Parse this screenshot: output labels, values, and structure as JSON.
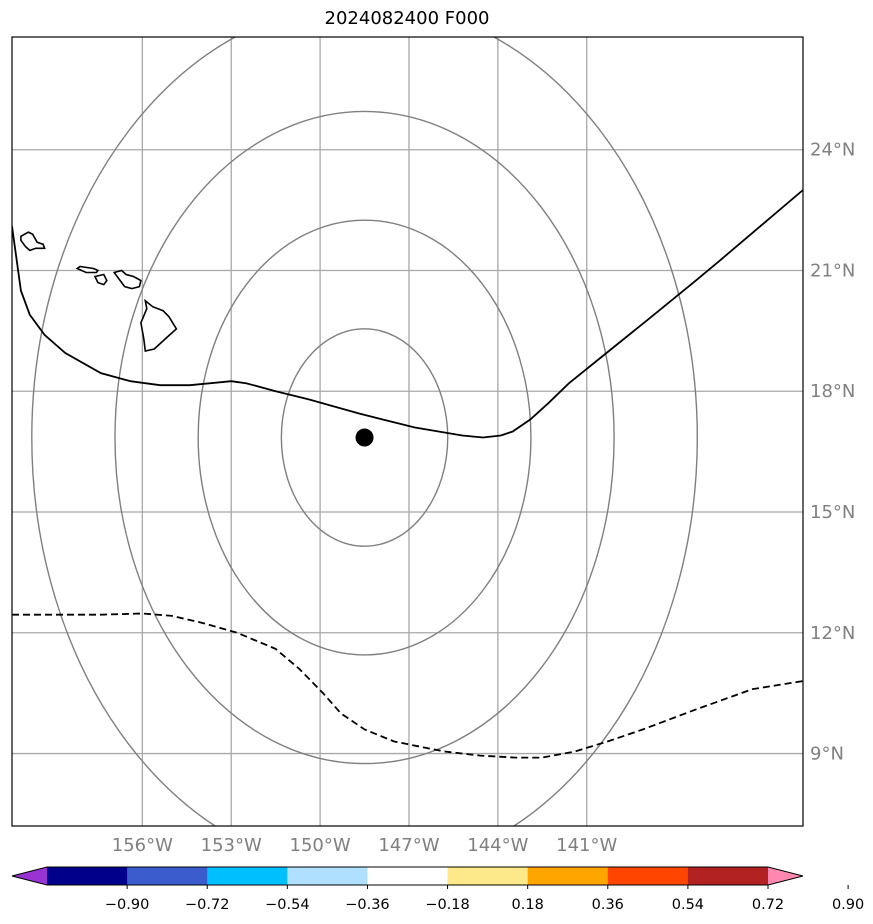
{
  "title": "2024082400 F000",
  "map": {
    "lon_range": [
      -160.4,
      -133.7
    ],
    "lat_range": [
      7.2,
      26.8
    ],
    "lon_ticks": [
      {
        "value": -156,
        "label": "156°W"
      },
      {
        "value": -153,
        "label": "153°W"
      },
      {
        "value": -150,
        "label": "150°W"
      },
      {
        "value": -147,
        "label": "147°W"
      },
      {
        "value": -144,
        "label": "144°W"
      },
      {
        "value": -141,
        "label": "141°W"
      }
    ],
    "lat_ticks": [
      {
        "value": 24,
        "label": "24°N"
      },
      {
        "value": 21,
        "label": "21°N"
      },
      {
        "value": 18,
        "label": "18°N"
      },
      {
        "value": 15,
        "label": "15°N"
      },
      {
        "value": 12,
        "label": "12°N"
      },
      {
        "value": 9,
        "label": "9°N"
      }
    ],
    "center": {
      "lon": -148.5,
      "lat": 16.85
    },
    "ring_radii_deg": [
      2.7,
      5.4,
      8.1,
      10.8
    ],
    "solid_line": [
      [
        -160.4,
        22.1
      ],
      [
        -160.1,
        20.5
      ],
      [
        -159.8,
        19.9
      ],
      [
        -159.3,
        19.4
      ],
      [
        -158.6,
        18.95
      ],
      [
        -157.4,
        18.45
      ],
      [
        -156.4,
        18.25
      ],
      [
        -155.4,
        18.15
      ],
      [
        -154.4,
        18.15
      ],
      [
        -153.0,
        18.25
      ],
      [
        -152.5,
        18.2
      ],
      [
        -151.5,
        18.0
      ],
      [
        -150.4,
        17.8
      ],
      [
        -148.7,
        17.45
      ],
      [
        -146.8,
        17.1
      ],
      [
        -145.2,
        16.9
      ],
      [
        -144.5,
        16.85
      ],
      [
        -143.9,
        16.9
      ],
      [
        -143.5,
        17.0
      ],
      [
        -142.9,
        17.3
      ],
      [
        -142.3,
        17.7
      ],
      [
        -141.6,
        18.2
      ],
      [
        -140.5,
        18.85
      ],
      [
        -138.9,
        19.8
      ],
      [
        -137.4,
        20.7
      ],
      [
        -136.5,
        21.25
      ],
      [
        -133.7,
        23.0
      ]
    ],
    "dashed_line": [
      [
        -160.4,
        12.45
      ],
      [
        -158.9,
        12.45
      ],
      [
        -157.4,
        12.45
      ],
      [
        -156.0,
        12.48
      ],
      [
        -155.0,
        12.42
      ],
      [
        -154.0,
        12.25
      ],
      [
        -152.8,
        12.0
      ],
      [
        -151.5,
        11.6
      ],
      [
        -150.7,
        11.1
      ],
      [
        -149.9,
        10.5
      ],
      [
        -149.3,
        10.0
      ],
      [
        -148.5,
        9.6
      ],
      [
        -147.5,
        9.3
      ],
      [
        -145.8,
        9.05
      ],
      [
        -144.6,
        8.95
      ],
      [
        -143.4,
        8.9
      ],
      [
        -142.5,
        8.9
      ],
      [
        -141.4,
        9.05
      ],
      [
        -140.3,
        9.3
      ],
      [
        -139.1,
        9.6
      ],
      [
        -137.3,
        10.1
      ],
      [
        -135.4,
        10.6
      ],
      [
        -133.7,
        10.8
      ]
    ],
    "islands": [
      [
        [
          -160.1,
          21.85
        ],
        [
          -159.85,
          21.95
        ],
        [
          -159.7,
          21.9
        ],
        [
          -159.55,
          21.7
        ],
        [
          -159.35,
          21.65
        ],
        [
          -159.3,
          21.55
        ],
        [
          -159.6,
          21.55
        ],
        [
          -159.8,
          21.5
        ],
        [
          -159.95,
          21.6
        ],
        [
          -160.1,
          21.75
        ]
      ],
      [
        [
          -158.1,
          21.1
        ],
        [
          -157.65,
          21.05
        ],
        [
          -157.5,
          21.0
        ],
        [
          -157.55,
          20.95
        ],
        [
          -157.9,
          20.95
        ],
        [
          -158.2,
          21.05
        ]
      ],
      [
        [
          -157.6,
          20.85
        ],
        [
          -157.3,
          20.9
        ],
        [
          -157.2,
          20.75
        ],
        [
          -157.3,
          20.65
        ],
        [
          -157.5,
          20.7
        ]
      ],
      [
        [
          -156.95,
          20.95
        ],
        [
          -156.7,
          21.0
        ],
        [
          -156.55,
          20.9
        ],
        [
          -156.3,
          20.85
        ],
        [
          -156.05,
          20.75
        ],
        [
          -156.1,
          20.6
        ],
        [
          -156.35,
          20.55
        ],
        [
          -156.6,
          20.6
        ],
        [
          -156.75,
          20.75
        ]
      ],
      [
        [
          -155.9,
          20.25
        ],
        [
          -155.65,
          20.1
        ],
        [
          -155.3,
          20.0
        ],
        [
          -155.1,
          19.85
        ],
        [
          -154.85,
          19.55
        ],
        [
          -155.15,
          19.35
        ],
        [
          -155.6,
          19.05
        ],
        [
          -155.9,
          19.0
        ],
        [
          -155.95,
          19.3
        ],
        [
          -156.05,
          19.7
        ],
        [
          -155.85,
          20.05
        ]
      ]
    ]
  },
  "colorbar": {
    "colors": [
      "#9a33d4",
      "#00008b",
      "#3b5ccc",
      "#00bfff",
      "#b0e0ff",
      "#ffffff",
      "#fde88a",
      "#ffa500",
      "#ff4500",
      "#b22222",
      "#ff87b0"
    ],
    "ticks": [
      "−0.90",
      "−0.72",
      "−0.54",
      "−0.36",
      "−0.18",
      "0.18",
      "0.36",
      "0.54",
      "0.72",
      "0.90"
    ]
  }
}
